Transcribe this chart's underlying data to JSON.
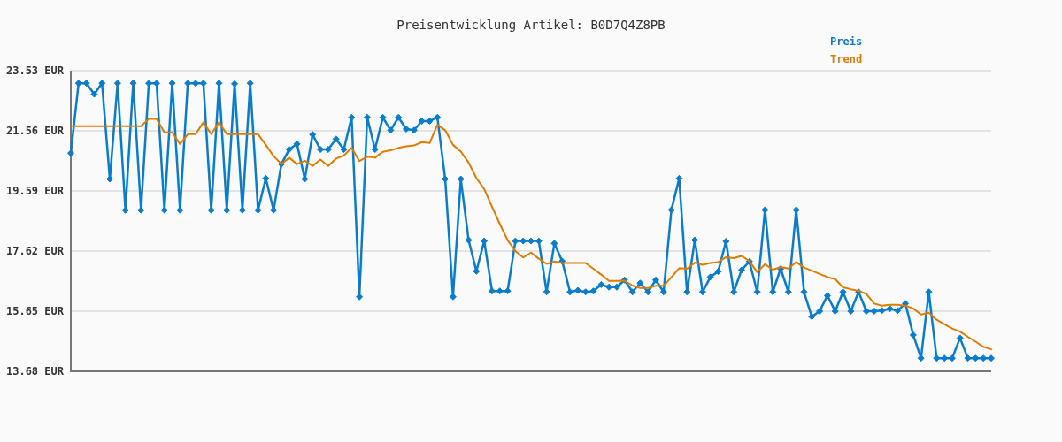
{
  "chart_data": {
    "type": "line",
    "title": "Preisentwicklung Artikel: B0D7Q4Z8PB",
    "categories": [
      null,
      null,
      null,
      null,
      null,
      null,
      null,
      null,
      null,
      null,
      null,
      null,
      null,
      null,
      null,
      null,
      null,
      null,
      null,
      null,
      null,
      null,
      null,
      null,
      null,
      null,
      null,
      null,
      null,
      null,
      null,
      null,
      null,
      null,
      null,
      null,
      null,
      null,
      null,
      null,
      null,
      null,
      null,
      null,
      null,
      null,
      null,
      null,
      null,
      null,
      null,
      null,
      null,
      null,
      null,
      null,
      null,
      null,
      null,
      null,
      null,
      null,
      null,
      null,
      null,
      null,
      null,
      null,
      null,
      null,
      null,
      null,
      null,
      null,
      null,
      null,
      null,
      null,
      null,
      null,
      null,
      null,
      null,
      null,
      null,
      null,
      null,
      null,
      null,
      null,
      null,
      null,
      null,
      null,
      null,
      null,
      null,
      null,
      null,
      null,
      null,
      null,
      null,
      null,
      null,
      null,
      null,
      null,
      null,
      null,
      null,
      null,
      null,
      null,
      null,
      null,
      null,
      null,
      null
    ],
    "series": [
      {
        "name": "Preis",
        "color": "#0a7ccc",
        "marker": "diamond",
        "values": [
          20.83,
          23.12,
          23.12,
          22.76,
          23.12,
          19.98,
          23.12,
          18.96,
          23.12,
          18.96,
          23.12,
          23.12,
          18.96,
          23.12,
          18.96,
          23.12,
          23.12,
          23.12,
          18.96,
          23.12,
          18.96,
          23.1,
          18.96,
          23.12,
          18.96,
          20.0,
          18.96,
          20.47,
          20.95,
          21.13,
          19.98,
          21.44,
          20.95,
          20.95,
          21.29,
          20.95,
          22.0,
          16.12,
          22.0,
          20.95,
          22.0,
          21.58,
          22.0,
          21.62,
          21.58,
          21.88,
          21.88,
          22.0,
          19.98,
          16.12,
          19.98,
          17.98,
          16.96,
          17.95,
          16.31,
          16.31,
          16.31,
          17.95,
          17.95,
          17.95,
          17.95,
          16.28,
          17.87,
          17.29,
          16.28,
          16.33,
          16.28,
          16.31,
          16.52,
          16.44,
          16.44,
          16.67,
          16.28,
          16.57,
          16.28,
          16.67,
          16.28,
          18.97,
          20.0,
          16.28,
          17.98,
          16.28,
          16.77,
          16.95,
          17.94,
          16.28,
          17.0,
          17.28,
          16.28,
          18.97,
          16.28,
          17.04,
          16.28,
          18.97,
          16.28,
          15.47,
          15.65,
          16.16,
          15.65,
          16.28,
          15.65,
          16.28,
          15.65,
          15.65,
          15.67,
          15.73,
          15.67,
          15.9,
          14.87,
          14.11,
          16.28,
          14.11,
          14.11,
          14.11,
          14.77,
          14.11,
          14.11,
          14.11,
          14.11
        ]
      },
      {
        "name": "Trend",
        "color": "#e07b00",
        "marker": "none",
        "values": [
          21.71,
          21.71,
          21.71,
          21.71,
          21.71,
          21.71,
          21.71,
          21.71,
          21.71,
          21.71,
          21.95,
          21.95,
          21.51,
          21.51,
          21.13,
          21.45,
          21.45,
          21.84,
          21.45,
          21.84,
          21.45,
          21.45,
          21.45,
          21.45,
          21.45,
          21.1,
          20.73,
          20.47,
          20.68,
          20.47,
          20.58,
          20.41,
          20.62,
          20.41,
          20.65,
          20.75,
          21.0,
          20.57,
          20.71,
          20.68,
          20.87,
          20.92,
          21.0,
          21.05,
          21.08,
          21.19,
          21.16,
          21.76,
          21.58,
          21.1,
          20.88,
          20.52,
          20.01,
          19.65,
          19.07,
          18.51,
          17.98,
          17.62,
          17.41,
          17.57,
          17.37,
          17.2,
          17.28,
          17.23,
          17.23,
          17.23,
          17.23,
          17.04,
          16.85,
          16.64,
          16.64,
          16.65,
          16.49,
          16.41,
          16.41,
          16.48,
          16.48,
          16.76,
          17.06,
          17.04,
          17.24,
          17.17,
          17.23,
          17.26,
          17.42,
          17.39,
          17.46,
          17.29,
          16.93,
          17.19,
          17.01,
          17.1,
          17.05,
          17.26,
          17.08,
          16.98,
          16.87,
          16.77,
          16.7,
          16.43,
          16.37,
          16.32,
          16.21,
          15.9,
          15.83,
          15.86,
          15.86,
          15.83,
          15.74,
          15.54,
          15.6,
          15.37,
          15.22,
          15.08,
          14.98,
          14.81,
          14.65,
          14.48,
          14.4
        ]
      }
    ],
    "ylim": [
      13.68,
      23.53
    ],
    "yticks": [
      {
        "value": 13.68,
        "label": "13.68 EUR"
      },
      {
        "value": 15.65,
        "label": "15.65 EUR"
      },
      {
        "value": 17.62,
        "label": "17.62 EUR"
      },
      {
        "value": 19.59,
        "label": "19.59 EUR"
      },
      {
        "value": 21.56,
        "label": "21.56 EUR"
      },
      {
        "value": 23.53,
        "label": "23.53 EUR"
      }
    ],
    "grid": "y",
    "legend": "top right",
    "tick_labels": "y",
    "line_style": "solid"
  }
}
